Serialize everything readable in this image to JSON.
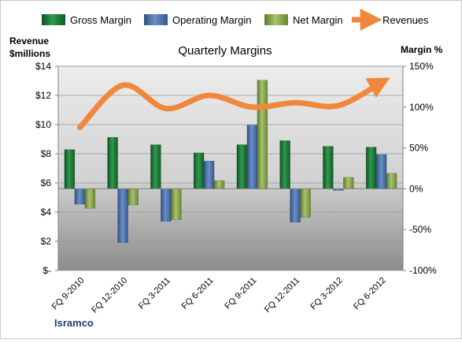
{
  "colors": {
    "gross": "#1f7a3a",
    "operating": "#4a6fa8",
    "net": "#8aa84a",
    "revenue": "#f0883c",
    "plot_top": "#ececec",
    "plot_bottom": "#8c8c8c"
  },
  "chart_data": {
    "type": "bar",
    "title": "Quarterly Margins",
    "ylabel_left": "Revenue $millions",
    "ylabel_right": "Margin %",
    "brand": "Isramco",
    "categories": [
      "FQ 9-2010",
      "FQ 12-2010",
      "FQ 3-2011",
      "FQ 6-2011",
      "FQ 9-2011",
      "FQ 12-2011",
      "FQ 3-2012",
      "FQ 6-2012"
    ],
    "left_axis": {
      "min": 0,
      "max": 14,
      "step": 2,
      "tick_labels": [
        "$-",
        "$2",
        "$4",
        "$6",
        "$8",
        "$10",
        "$12",
        "$14"
      ]
    },
    "right_axis": {
      "min": -100,
      "max": 150,
      "step": 50,
      "tick_labels": [
        "-100%",
        "-50%",
        "0%",
        "50%",
        "100%",
        "150%"
      ]
    },
    "grid": true,
    "legend_position": "top",
    "series": [
      {
        "name": "Gross Margin",
        "type": "bar",
        "axis": "right",
        "color_key": "gross",
        "values": [
          48,
          63,
          54,
          44,
          54,
          59,
          52,
          51
        ]
      },
      {
        "name": "Operating Margin",
        "type": "bar",
        "axis": "right",
        "color_key": "operating",
        "values": [
          -19,
          -66,
          -40,
          34,
          78,
          -41,
          -2,
          42
        ]
      },
      {
        "name": "Net Margin",
        "type": "bar",
        "axis": "right",
        "color_key": "net",
        "values": [
          -24,
          -20,
          -38,
          10,
          133,
          -35,
          14,
          19
        ]
      },
      {
        "name": "Revenues",
        "type": "line",
        "axis": "left",
        "color_key": "revenue",
        "values": [
          9.8,
          12.7,
          11.1,
          12.0,
          11.2,
          11.5,
          11.3,
          12.9
        ]
      }
    ]
  }
}
